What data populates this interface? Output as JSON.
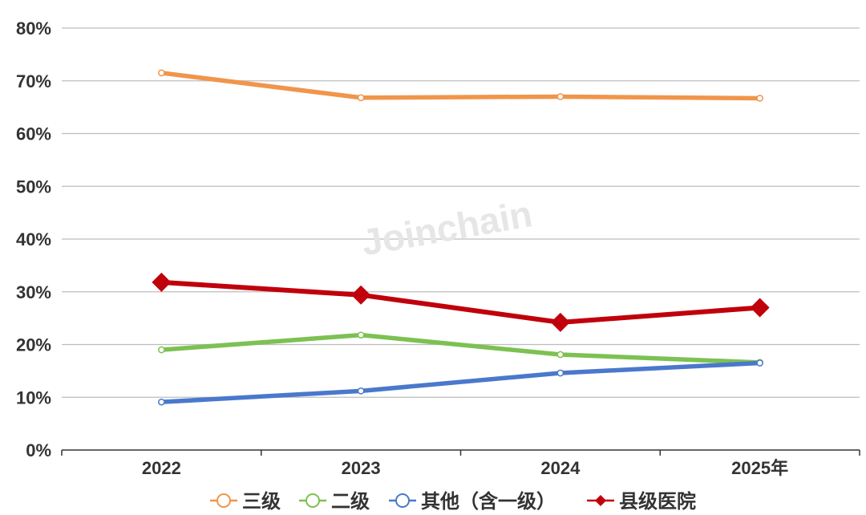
{
  "chart_data": {
    "type": "line",
    "title": "",
    "xlabel": "",
    "ylabel": "",
    "categories": [
      "2022",
      "2023",
      "2024",
      "2025年"
    ],
    "ylim": [
      0,
      80
    ],
    "yticks": [
      "0%",
      "10%",
      "20%",
      "30%",
      "40%",
      "50%",
      "60%",
      "70%",
      "80%"
    ],
    "grid": true,
    "legend_position": "bottom",
    "series": [
      {
        "name": "三级",
        "values": [
          71.5,
          66.8,
          67.0,
          66.7
        ],
        "color": "#f0954a",
        "marker": "hollow-circle"
      },
      {
        "name": "二级",
        "values": [
          19.0,
          21.8,
          18.1,
          16.6
        ],
        "color": "#7cc152",
        "marker": "hollow-circle"
      },
      {
        "name": "其他（含一级）",
        "values": [
          9.1,
          11.2,
          14.6,
          16.5
        ],
        "color": "#4a78cc",
        "marker": "hollow-circle"
      },
      {
        "name": "县级医院",
        "values": [
          31.8,
          29.4,
          24.2,
          27.0
        ],
        "color": "#c0000b",
        "marker": "diamond"
      }
    ]
  },
  "watermark": "Joinchain"
}
